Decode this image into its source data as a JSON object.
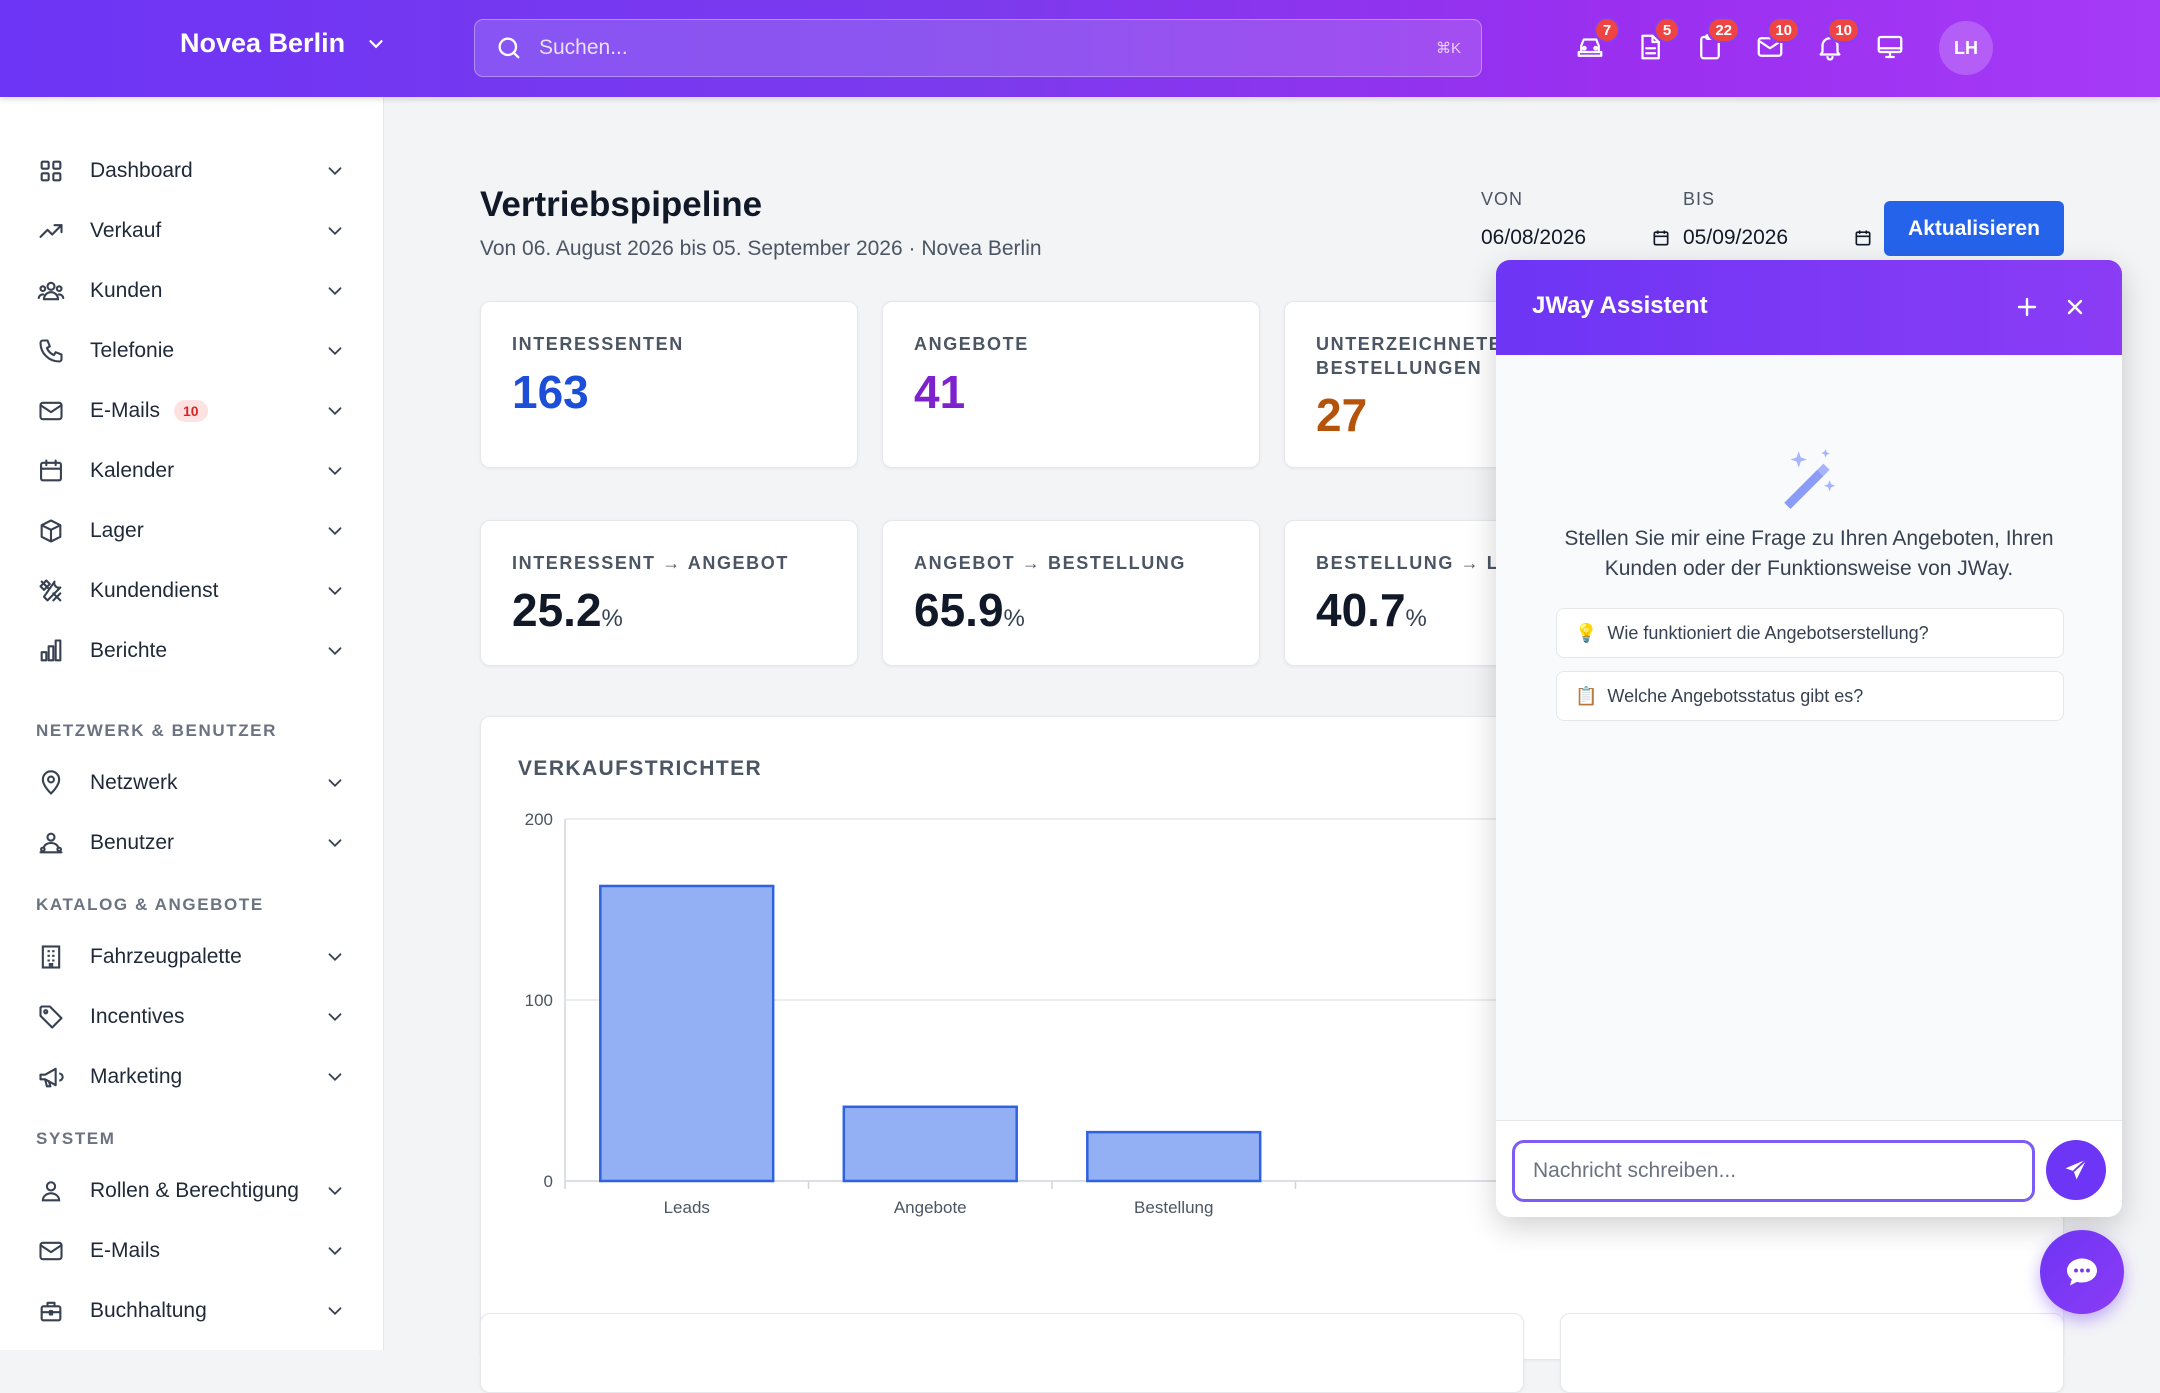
{
  "header": {
    "brand": "Novea Berlin",
    "search_placeholder": "Suchen...",
    "search_shortcut": "⌘K",
    "icons": [
      {
        "name": "car-icon",
        "badge": "7"
      },
      {
        "name": "document-icon",
        "badge": "5"
      },
      {
        "name": "clipboard-icon",
        "badge": "22"
      },
      {
        "name": "mail-icon",
        "badge": "10"
      },
      {
        "name": "bell-icon",
        "badge": "10"
      },
      {
        "name": "monitor-icon",
        "badge": ""
      }
    ],
    "avatar": "LH"
  },
  "sidebar": {
    "items": [
      {
        "label": "Dashboard",
        "icon": "grid-icon"
      },
      {
        "label": "Verkauf",
        "icon": "trending-up-icon"
      },
      {
        "label": "Kunden",
        "icon": "users-icon"
      },
      {
        "label": "Telefonie",
        "icon": "phone-icon"
      },
      {
        "label": "E-Mails",
        "icon": "mail-icon",
        "badge": "10"
      },
      {
        "label": "Kalender",
        "icon": "calendar-icon"
      },
      {
        "label": "Lager",
        "icon": "box-icon"
      },
      {
        "label": "Kundendienst",
        "icon": "tools-icon"
      },
      {
        "label": "Berichte",
        "icon": "bar-chart-icon"
      }
    ],
    "section_network": "NETZWERK & BENUTZER",
    "network_items": [
      {
        "label": "Netzwerk",
        "icon": "location-icon"
      },
      {
        "label": "Benutzer",
        "icon": "user-group-icon"
      }
    ],
    "section_catalog": "KATALOG & ANGEBOTE",
    "catalog_items": [
      {
        "label": "Fahrzeugpalette",
        "icon": "building-icon"
      },
      {
        "label": "Incentives",
        "icon": "tag-icon"
      },
      {
        "label": "Marketing",
        "icon": "megaphone-icon"
      }
    ],
    "section_system": "SYSTEM",
    "system_items": [
      {
        "label": "Rollen & Berechtigung",
        "icon": "user-icon"
      },
      {
        "label": "E-Mails",
        "icon": "mail-icon"
      },
      {
        "label": "Buchhaltung",
        "icon": "briefcase-icon"
      }
    ]
  },
  "page": {
    "title": "Vertriebspipeline",
    "subtitle": "Von 06. August 2026 bis 05. September 2026 · Novea Berlin",
    "from_label": "VON",
    "from_value": "06/08/2026",
    "to_label": "BIS",
    "to_value": "05/09/2026",
    "update_button": "Aktualisieren"
  },
  "kpis": [
    {
      "label": "INTERESSENTEN",
      "value": "163",
      "color": "#1d4ed8"
    },
    {
      "label": "ANGEBOTE",
      "value": "41",
      "color": "#7e22ce"
    },
    {
      "label": "UNTERZEICHNETE BESTELLUNGEN",
      "value": "27",
      "color": "#b45309"
    }
  ],
  "rates": [
    {
      "label": "INTERESSENT → ANGEBOT",
      "value": "25.2",
      "unit": "%"
    },
    {
      "label": "ANGEBOT → BESTELLUNG",
      "value": "65.9",
      "unit": "%"
    },
    {
      "label": "BESTELLUNG → LI",
      "value": "40.7",
      "unit": "%"
    }
  ],
  "chart_title": "VERKAUFSTRICHTER",
  "chart_data": {
    "type": "bar",
    "title": "VERKAUFSTRICHTER",
    "categories": [
      "Leads",
      "Angebote",
      "Bestellung"
    ],
    "values": [
      163,
      41,
      27
    ],
    "ylim": [
      0,
      200
    ],
    "yticks": [
      0,
      100,
      200
    ],
    "grid": true,
    "bar_color": "#93b0f5",
    "bar_stroke": "#2f62e0"
  },
  "assistant": {
    "title": "JWay Assistent",
    "description": "Stellen Sie mir eine Frage zu Ihren Angeboten, Ihren Kunden oder der Funktionsweise von JWay.",
    "suggestions": [
      {
        "emoji": "💡",
        "text": "Wie funktioniert die Angebotserstellung?"
      },
      {
        "emoji": "📋",
        "text": "Welche Angebotsstatus gibt es?"
      }
    ],
    "input_placeholder": "Nachricht schreiben..."
  }
}
